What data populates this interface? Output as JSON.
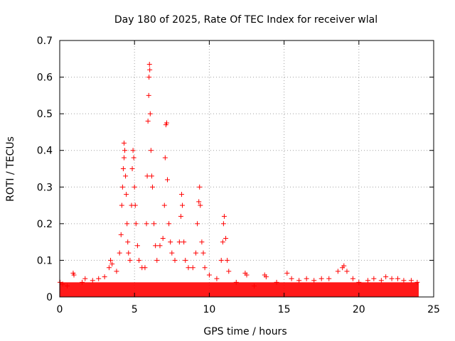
{
  "chart_data": {
    "type": "scatter",
    "title": "Day 180 of 2025, Rate Of TEC Index for receiver wlal",
    "xlabel": "GPS time / hours",
    "ylabel": "ROTI / TECUs",
    "xlim": [
      0,
      25
    ],
    "ylim": [
      0,
      0.7
    ],
    "xticks": [
      0,
      5,
      10,
      15,
      20,
      25
    ],
    "yticks": [
      0,
      0.1,
      0.2,
      0.3,
      0.4,
      0.5,
      0.6,
      0.7
    ],
    "grid": true,
    "marker": "+",
    "color": "#ff0000",
    "background_band": {
      "x_start": 0,
      "x_end": 24,
      "y_low": 0,
      "y_high": 0.04
    },
    "series": [
      {
        "name": "ROTI",
        "points": [
          [
            0.02,
            0.04
          ],
          [
            0.2,
            0.035
          ],
          [
            0.5,
            0.03
          ],
          [
            0.9,
            0.065
          ],
          [
            0.95,
            0.06
          ],
          [
            1.5,
            0.04
          ],
          [
            1.7,
            0.05
          ],
          [
            2.2,
            0.045
          ],
          [
            2.6,
            0.05
          ],
          [
            3.0,
            0.055
          ],
          [
            3.3,
            0.08
          ],
          [
            3.4,
            0.1
          ],
          [
            3.5,
            0.09
          ],
          [
            3.8,
            0.07
          ],
          [
            4.0,
            0.12
          ],
          [
            4.1,
            0.17
          ],
          [
            4.15,
            0.25
          ],
          [
            4.2,
            0.3
          ],
          [
            4.25,
            0.35
          ],
          [
            4.3,
            0.38
          ],
          [
            4.3,
            0.42
          ],
          [
            4.35,
            0.4
          ],
          [
            4.4,
            0.33
          ],
          [
            4.45,
            0.28
          ],
          [
            4.5,
            0.2
          ],
          [
            4.55,
            0.15
          ],
          [
            4.6,
            0.12
          ],
          [
            4.7,
            0.1
          ],
          [
            4.8,
            0.25
          ],
          [
            4.85,
            0.35
          ],
          [
            4.9,
            0.4
          ],
          [
            4.95,
            0.38
          ],
          [
            5.0,
            0.3
          ],
          [
            5.05,
            0.25
          ],
          [
            5.1,
            0.2
          ],
          [
            5.2,
            0.14
          ],
          [
            5.3,
            0.1
          ],
          [
            5.5,
            0.08
          ],
          [
            5.7,
            0.08
          ],
          [
            5.8,
            0.2
          ],
          [
            5.85,
            0.33
          ],
          [
            5.9,
            0.48
          ],
          [
            5.95,
            0.55
          ],
          [
            5.97,
            0.6
          ],
          [
            6.0,
            0.635
          ],
          [
            6.02,
            0.62
          ],
          [
            6.05,
            0.5
          ],
          [
            6.1,
            0.4
          ],
          [
            6.15,
            0.33
          ],
          [
            6.2,
            0.3
          ],
          [
            6.3,
            0.2
          ],
          [
            6.4,
            0.14
          ],
          [
            6.5,
            0.1
          ],
          [
            6.7,
            0.14
          ],
          [
            6.9,
            0.16
          ],
          [
            7.0,
            0.25
          ],
          [
            7.05,
            0.38
          ],
          [
            7.1,
            0.47
          ],
          [
            7.15,
            0.475
          ],
          [
            7.2,
            0.32
          ],
          [
            7.3,
            0.2
          ],
          [
            7.4,
            0.15
          ],
          [
            7.5,
            0.12
          ],
          [
            7.7,
            0.1
          ],
          [
            8.0,
            0.15
          ],
          [
            8.1,
            0.22
          ],
          [
            8.15,
            0.28
          ],
          [
            8.2,
            0.25
          ],
          [
            8.3,
            0.15
          ],
          [
            8.4,
            0.1
          ],
          [
            8.6,
            0.08
          ],
          [
            8.9,
            0.08
          ],
          [
            9.1,
            0.12
          ],
          [
            9.2,
            0.2
          ],
          [
            9.3,
            0.26
          ],
          [
            9.35,
            0.3
          ],
          [
            9.4,
            0.25
          ],
          [
            9.5,
            0.15
          ],
          [
            9.6,
            0.12
          ],
          [
            9.7,
            0.08
          ],
          [
            10.0,
            0.06
          ],
          [
            10.5,
            0.05
          ],
          [
            10.8,
            0.1
          ],
          [
            10.9,
            0.15
          ],
          [
            10.95,
            0.2
          ],
          [
            11.0,
            0.22
          ],
          [
            11.1,
            0.16
          ],
          [
            11.2,
            0.1
          ],
          [
            11.3,
            0.07
          ],
          [
            11.8,
            0.04
          ],
          [
            12.4,
            0.065
          ],
          [
            12.5,
            0.06
          ],
          [
            13.0,
            0.03
          ],
          [
            13.7,
            0.06
          ],
          [
            13.8,
            0.055
          ],
          [
            14.5,
            0.04
          ],
          [
            15.2,
            0.065
          ],
          [
            15.5,
            0.05
          ],
          [
            16.0,
            0.045
          ],
          [
            16.5,
            0.05
          ],
          [
            17.0,
            0.045
          ],
          [
            17.5,
            0.05
          ],
          [
            18.0,
            0.05
          ],
          [
            18.6,
            0.07
          ],
          [
            18.9,
            0.08
          ],
          [
            19.0,
            0.085
          ],
          [
            19.2,
            0.07
          ],
          [
            19.6,
            0.05
          ],
          [
            20.0,
            0.04
          ],
          [
            20.6,
            0.045
          ],
          [
            21.0,
            0.05
          ],
          [
            21.5,
            0.045
          ],
          [
            21.8,
            0.055
          ],
          [
            22.2,
            0.05
          ],
          [
            22.6,
            0.05
          ],
          [
            23.0,
            0.045
          ],
          [
            23.5,
            0.045
          ],
          [
            23.9,
            0.04
          ]
        ]
      }
    ]
  }
}
